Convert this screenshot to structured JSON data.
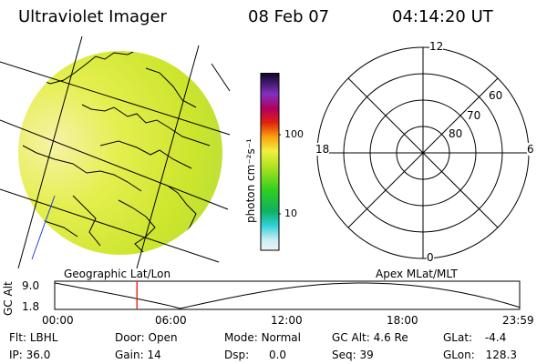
{
  "header": {
    "instrument": "Ultraviolet Imager",
    "date": "08 Feb 07",
    "time": "04:14:20 UT"
  },
  "colorbar": {
    "unit_label": "photon cm⁻²s⁻¹",
    "tick_100": "100",
    "tick_10": "10"
  },
  "polar": {
    "mlt_12": "12",
    "mlt_18": "18",
    "mlt_6": "6",
    "mlt_0": "0",
    "lat_60": "60",
    "lat_70": "70",
    "lat_80": "80"
  },
  "labels": {
    "geo": "Geographic Lat/Lon",
    "apex": "Apex MLat/MLT"
  },
  "orbit": {
    "axis_title": "GC Alt",
    "y_top": "9.0",
    "y_bottom": "1.8",
    "x_ticks": [
      "00:00",
      "06:00",
      "12:00",
      "18:00",
      "23:59"
    ],
    "current_time_fraction": 0.177
  },
  "status": {
    "flt_label": "Flt:",
    "flt_value": "LBHL",
    "ip_label": "IP:",
    "ip_value": "36.0",
    "door_label": "Door:",
    "door_value": "Open",
    "gain_label": "Gain:",
    "gain_value": "14",
    "mode_label": "Mode:",
    "mode_value": "Normal",
    "dsp_label": "Dsp:",
    "dsp_value": "0.0",
    "gcalt_label": "GC Alt:",
    "gcalt_value": "4.6 Re",
    "seq_label": "Seq:",
    "seq_value": "39",
    "glat_label": "GLat:",
    "glat_value": "-4.4",
    "glon_label": "GLon:",
    "glon_value": "128.3"
  },
  "colors": {
    "earth_base": "#d6ee2a",
    "earth_bright": "#f4f089",
    "earth_dark": "#b8e030",
    "orbit_marker": "#e03020"
  }
}
